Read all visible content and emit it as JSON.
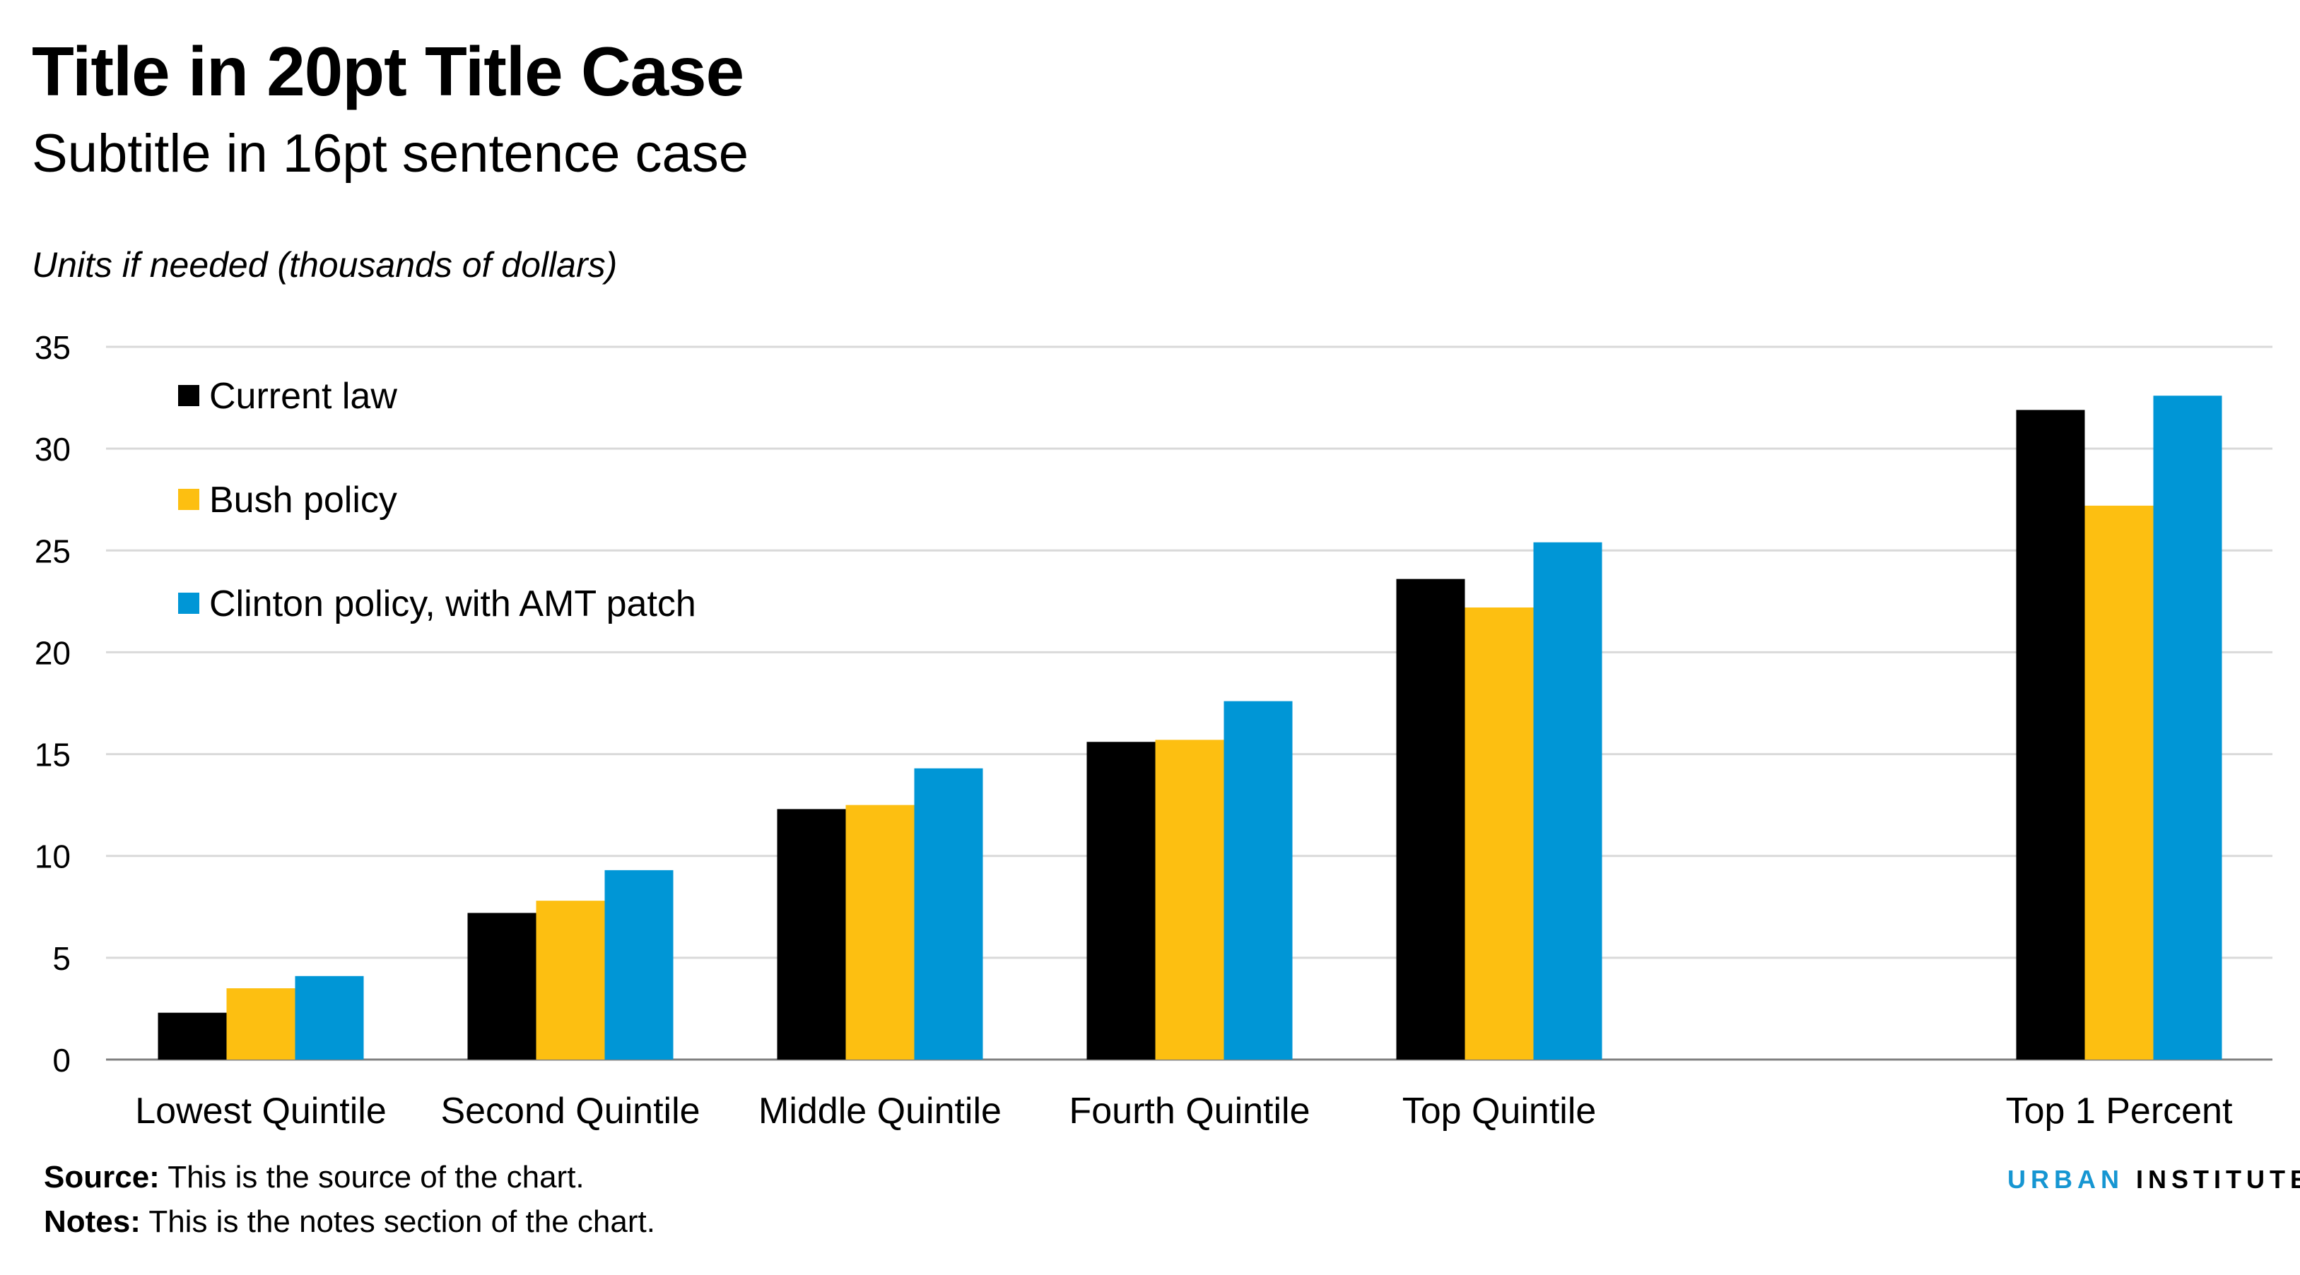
{
  "title": "Title in 20pt Title Case",
  "subtitle": "Subtitle in 16pt sentence case",
  "units_label": "Units if needed (thousands of dollars)",
  "source_label": "Source:",
  "source_text": " This is the source of the chart.",
  "notes_label": "Notes:",
  "notes_text": " This is the notes section of the chart.",
  "logo": {
    "word1": "URBAN",
    "word2": " INSTITUTE",
    "color": "#1696d2"
  },
  "chart_data": {
    "type": "bar",
    "title": "Title in 20pt Title Case",
    "ylabel": "Units if needed (thousands of dollars)",
    "xlabel": "",
    "ylim": [
      0,
      35
    ],
    "yticks": [
      0,
      5,
      10,
      15,
      20,
      25,
      30,
      35
    ],
    "grid": true,
    "legend": "top-left",
    "categories": [
      "Lowest Quintile",
      "Second Quintile",
      "Middle Quintile",
      "Fourth Quintile",
      "Top Quintile",
      "Top 1 Percent"
    ],
    "series": [
      {
        "name": "Current law",
        "color": "#000000",
        "values": [
          2.3,
          7.2,
          12.3,
          15.6,
          23.6,
          31.9
        ]
      },
      {
        "name": "Bush policy",
        "color": "#fdbf11",
        "values": [
          3.5,
          7.8,
          12.5,
          15.7,
          22.2,
          27.2
        ]
      },
      {
        "name": "Clinton policy, with AMT patch",
        "color": "#0096d6",
        "values": [
          4.1,
          9.3,
          14.3,
          17.6,
          25.4,
          32.6
        ]
      }
    ]
  }
}
